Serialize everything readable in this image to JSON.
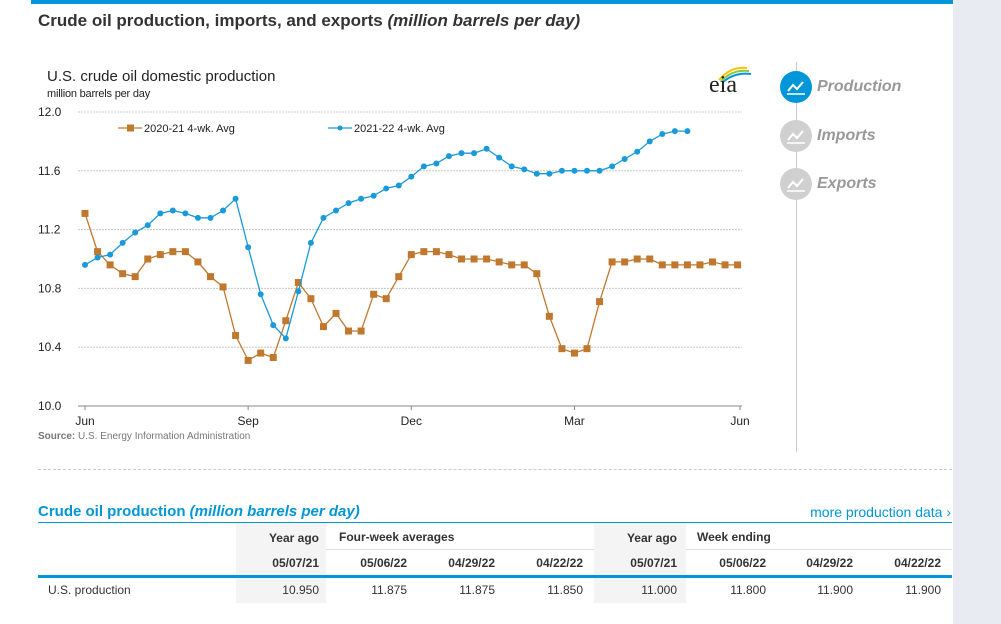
{
  "header": {
    "title": "Crude oil production, imports, and exports",
    "title_units": "(million barrels per day)"
  },
  "chart_panel": {
    "title": "U.S. crude oil domestic production",
    "unit": "million barrels per day",
    "logo_text": "eia",
    "source_label": "Source:",
    "source_text": "U.S. Energy Information Administration"
  },
  "nav": {
    "items": [
      {
        "label": "Production",
        "active": true,
        "icon": "line-chart-icon"
      },
      {
        "label": "Imports",
        "active": false,
        "icon": "line-chart-icon"
      },
      {
        "label": "Exports",
        "active": false,
        "icon": "line-chart-icon"
      }
    ]
  },
  "colors": {
    "accent": "#0096d7",
    "series_2020_21": "#c0782e",
    "series_2021_22": "#1a9ad9"
  },
  "chart_data": {
    "type": "line",
    "title": "U.S. crude oil domestic production",
    "ylabel": "million barrels per day",
    "xlabel": "",
    "ylim": [
      10.0,
      12.0
    ],
    "yticks": [
      "12.0",
      "11.6",
      "11.2",
      "10.8",
      "10.4",
      "10.0"
    ],
    "ytick_values": [
      12.0,
      11.6,
      11.2,
      10.8,
      10.4,
      10.0
    ],
    "xticks": [
      "Jun",
      "Sep",
      "Dec",
      "Mar",
      "Jun"
    ],
    "xtick_weeks": [
      0,
      13,
      26,
      39,
      52.3
    ],
    "x_unit": "week index from early June",
    "grid": true,
    "legend_position": "top",
    "series": [
      {
        "name": "2020-21  4-wk. Avg",
        "marker": "square",
        "values": [
          11.31,
          11.05,
          10.96,
          10.9,
          10.88,
          11.0,
          11.03,
          11.05,
          11.05,
          10.98,
          10.88,
          10.81,
          10.48,
          10.31,
          10.36,
          10.33,
          10.58,
          10.84,
          10.73,
          10.54,
          10.63,
          10.51,
          10.51,
          10.76,
          10.73,
          10.88,
          11.03,
          11.05,
          11.05,
          11.03,
          11.0,
          11.0,
          11.0,
          10.98,
          10.96,
          10.96,
          10.9,
          10.61,
          10.39,
          10.36,
          10.39,
          10.71,
          10.98,
          10.98,
          11.0,
          11.0,
          10.96,
          10.96,
          10.96,
          10.96,
          10.98,
          10.96,
          10.96
        ]
      },
      {
        "name": "2021-22  4-wk. Avg",
        "marker": "circle",
        "values": [
          10.96,
          11.01,
          11.03,
          11.11,
          11.18,
          11.23,
          11.31,
          11.33,
          11.31,
          11.28,
          11.28,
          11.33,
          11.41,
          11.08,
          10.76,
          10.55,
          10.46,
          10.78,
          11.11,
          11.28,
          11.33,
          11.38,
          11.41,
          11.43,
          11.48,
          11.5,
          11.56,
          11.63,
          11.65,
          11.7,
          11.72,
          11.72,
          11.75,
          11.69,
          11.63,
          11.61,
          11.58,
          11.58,
          11.6,
          11.6,
          11.6,
          11.6,
          11.63,
          11.68,
          11.73,
          11.8,
          11.85,
          11.87,
          11.87
        ]
      }
    ]
  },
  "table": {
    "title": "Crude oil production",
    "title_units": "(million barrels per day)",
    "more_link": "more production data ›",
    "group_headers": [
      "Year ago",
      "Four-week averages",
      "Year ago",
      "Week ending"
    ],
    "date_headers": [
      "05/07/21",
      "05/06/22",
      "04/29/22",
      "04/22/22",
      "05/07/21",
      "05/06/22",
      "04/29/22",
      "04/22/22"
    ],
    "rows": [
      {
        "label": "U.S. production",
        "values": [
          "10.950",
          "11.875",
          "11.875",
          "11.850",
          "11.000",
          "11.800",
          "11.900",
          "11.900"
        ]
      }
    ]
  }
}
